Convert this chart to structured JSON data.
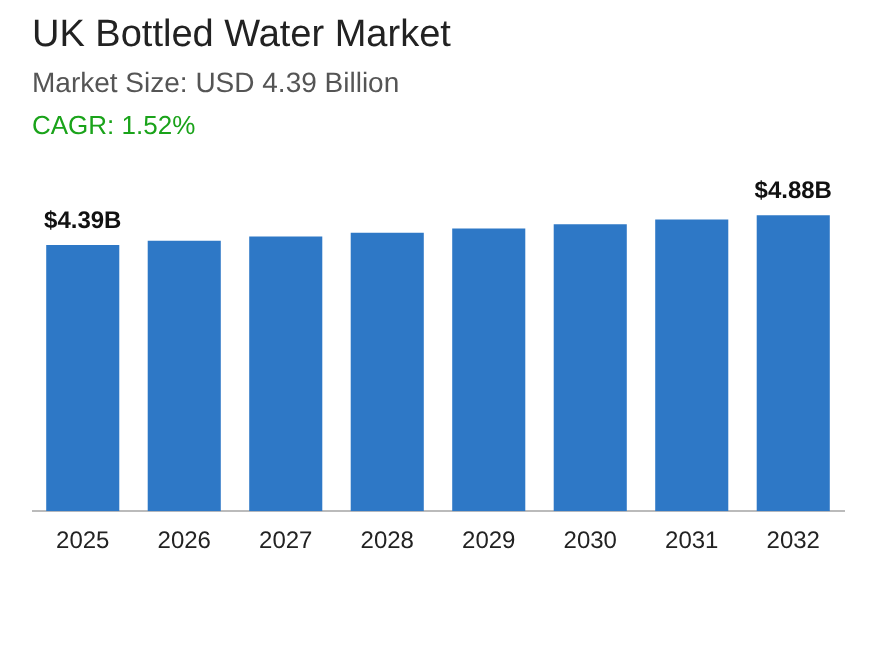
{
  "chart_data": {
    "type": "bar",
    "title": "UK Bottled Water Market",
    "subtitle": "Market Size: USD 4.39 Billion",
    "annotations": [
      "CAGR: 1.52%"
    ],
    "categories": [
      "2025",
      "2026",
      "2027",
      "2028",
      "2029",
      "2030",
      "2031",
      "2032"
    ],
    "values": [
      4.39,
      4.46,
      4.53,
      4.59,
      4.66,
      4.73,
      4.81,
      4.88
    ],
    "value_labels": [
      "$4.39B",
      null,
      null,
      null,
      null,
      null,
      null,
      "$4.88B"
    ],
    "color": "#2e78c6",
    "grid": false,
    "legend": false
  }
}
